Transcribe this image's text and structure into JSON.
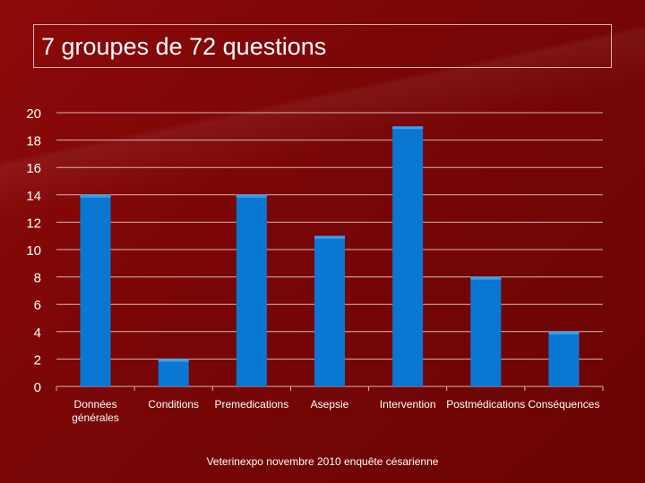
{
  "slide": {
    "title": "7 groupes de 72 questions",
    "footer": "Veterinexpo novembre 2010 enquête césarienne"
  },
  "colors": {
    "bar_fill": "#0a78d2",
    "bar_top": "#3aa0ee",
    "grid": "#d6b4b4",
    "axis_text": "#ffffff"
  },
  "chart_data": {
    "type": "bar",
    "title": "",
    "xlabel": "",
    "ylabel": "",
    "categories": [
      "Données générales",
      "Conditions",
      "Premedications",
      "Asepsie",
      "Intervention",
      "Postmédications",
      "Conséquences"
    ],
    "values": [
      14,
      2,
      14,
      11,
      19,
      8,
      4
    ],
    "ylim": [
      0,
      20
    ],
    "yticks": [
      0,
      2,
      4,
      6,
      8,
      10,
      12,
      14,
      16,
      18,
      20
    ],
    "grid": true,
    "legend": "none"
  }
}
